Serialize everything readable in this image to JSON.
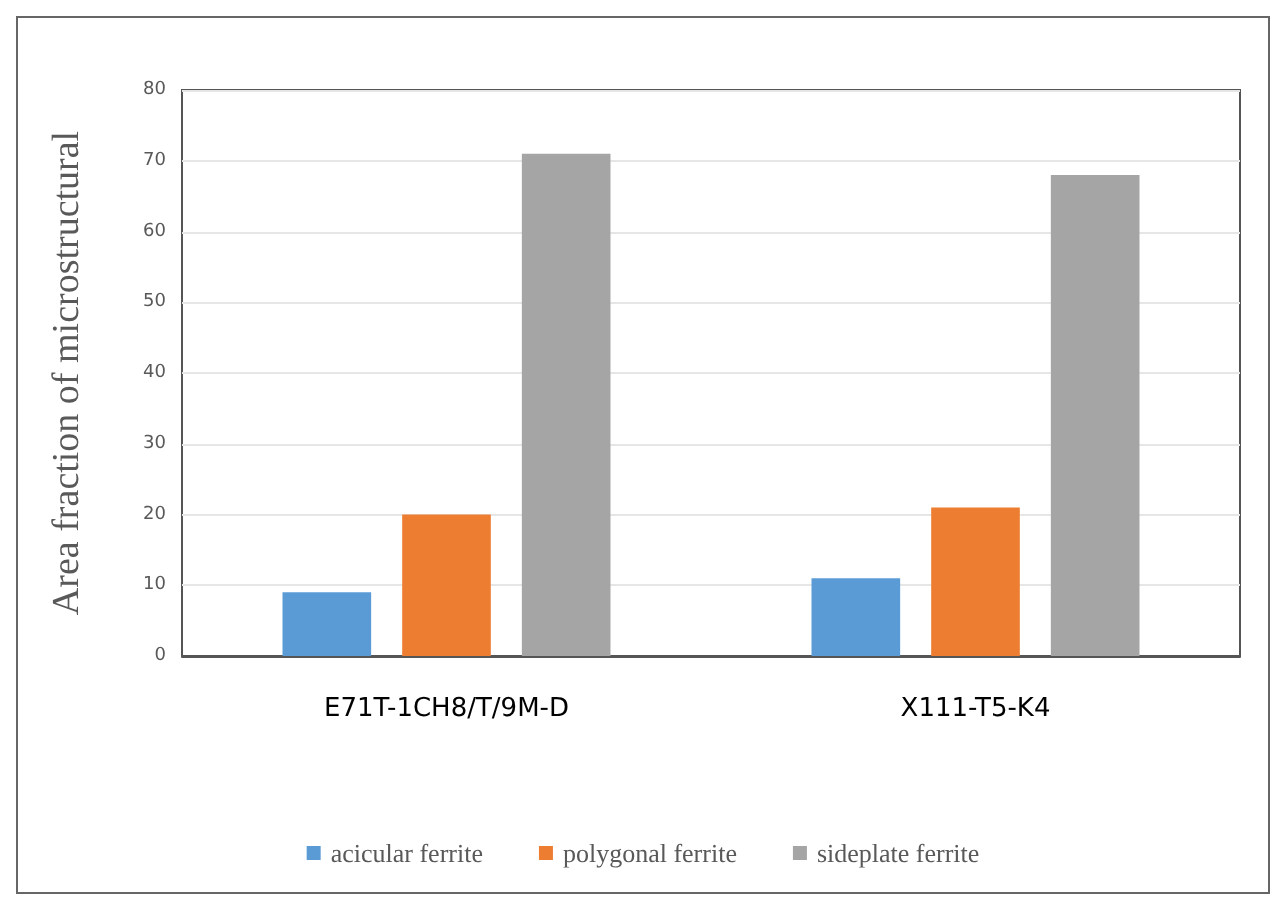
{
  "chart_data": {
    "type": "bar",
    "ylabel": "Area fraction of microstructural",
    "categories": [
      "E71T-1CH8/T/9M-D",
      "X111-T5-K4"
    ],
    "series": [
      {
        "name": "acicular ferrite",
        "color": "#5b9bd5",
        "values": [
          9,
          11
        ]
      },
      {
        "name": "polygonal ferrite",
        "color": "#ed7d31",
        "values": [
          20,
          21
        ]
      },
      {
        "name": "sideplate ferrite",
        "color": "#a5a5a5",
        "values": [
          71,
          68
        ]
      }
    ],
    "ylim": [
      0,
      80
    ],
    "yticks": [
      0,
      10,
      20,
      30,
      40,
      50,
      60,
      70,
      80
    ],
    "grid": "y",
    "legend": "bottom"
  }
}
